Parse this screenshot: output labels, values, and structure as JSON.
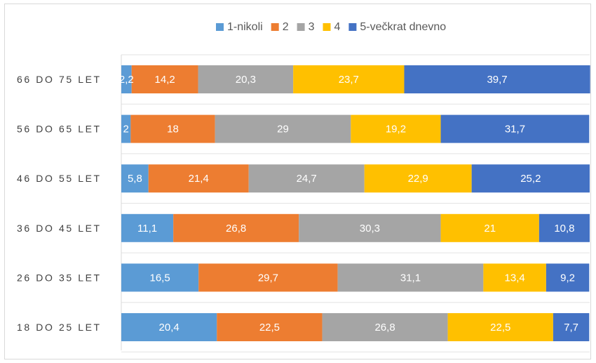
{
  "chart_data": {
    "type": "bar",
    "orientation": "horizontal",
    "stacked": true,
    "categories": [
      "66 DO 75 LET",
      "56 DO 65 LET",
      "46 DO 55 LET",
      "36 DO 45 LET",
      "26 DO 35 LET",
      "18 DO 25 LET"
    ],
    "series": [
      {
        "name": "1-nikoli",
        "color": "#5B9BD5",
        "values": [
          2.2,
          2,
          5.8,
          11.1,
          16.5,
          20.4
        ],
        "labels": [
          "2,2",
          "2",
          "5,8",
          "11,1",
          "16,5",
          "20,4"
        ]
      },
      {
        "name": "2",
        "color": "#ED7D31",
        "values": [
          14.2,
          18,
          21.4,
          26.8,
          29.7,
          22.5
        ],
        "labels": [
          "14,2",
          "18",
          "21,4",
          "26,8",
          "29,7",
          "22,5"
        ]
      },
      {
        "name": "3",
        "color": "#A5A5A5",
        "values": [
          20.3,
          29,
          24.7,
          30.3,
          31.1,
          26.8
        ],
        "labels": [
          "20,3",
          "29",
          "24,7",
          "30,3",
          "31,1",
          "26,8"
        ]
      },
      {
        "name": "4",
        "color": "#FFC000",
        "values": [
          23.7,
          19.2,
          22.9,
          21,
          13.4,
          22.5
        ],
        "labels": [
          "23,7",
          "19,2",
          "22,9",
          "21",
          "13,4",
          "22,5"
        ]
      },
      {
        "name": "5-večkrat dnevno",
        "color": "#4472C4",
        "values": [
          39.7,
          31.7,
          25.2,
          10.8,
          9.2,
          7.7
        ],
        "labels": [
          "39,7",
          "31,7",
          "25,2",
          "10,8",
          "9,2",
          "7,7"
        ]
      }
    ],
    "xlim": [
      0,
      100
    ],
    "grid": true,
    "legend_position": "top"
  }
}
